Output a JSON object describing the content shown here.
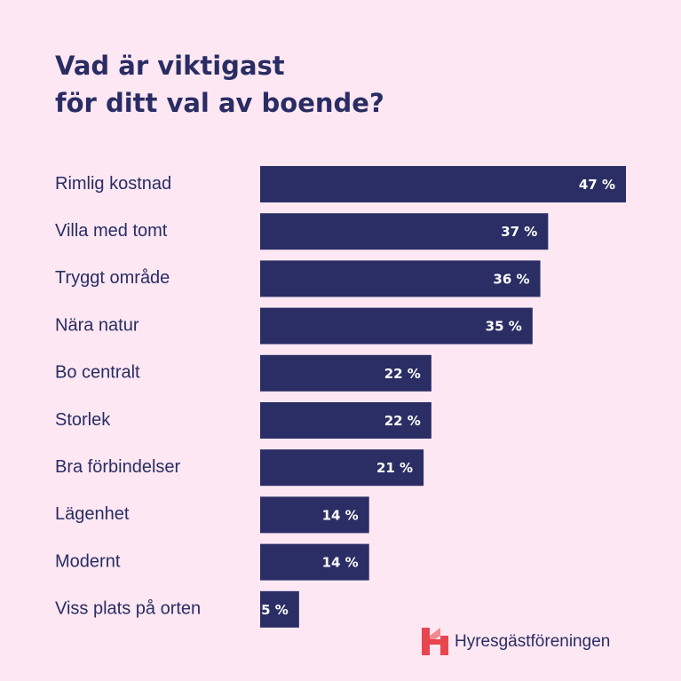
{
  "chart_data": {
    "type": "bar",
    "orientation": "horizontal",
    "title": [
      "Vad är viktigast",
      "för ditt val av boende?"
    ],
    "categories": [
      "Rimlig kostnad",
      "Villa med tomt",
      "Tryggt område",
      "Nära natur",
      "Bo centralt",
      "Storlek",
      "Bra förbindelser",
      "Lägenhet",
      "Modernt",
      "Viss plats på orten"
    ],
    "values": [
      47,
      37,
      36,
      35,
      22,
      22,
      21,
      14,
      14,
      5
    ],
    "value_labels": [
      "47 %",
      "37 %",
      "36 %",
      "35 %",
      "22 %",
      "22 %",
      "21 %",
      "14 %",
      "14 %",
      "5 %"
    ],
    "color": "#2b2e64"
  },
  "logo": "Hyresgästföreningen"
}
